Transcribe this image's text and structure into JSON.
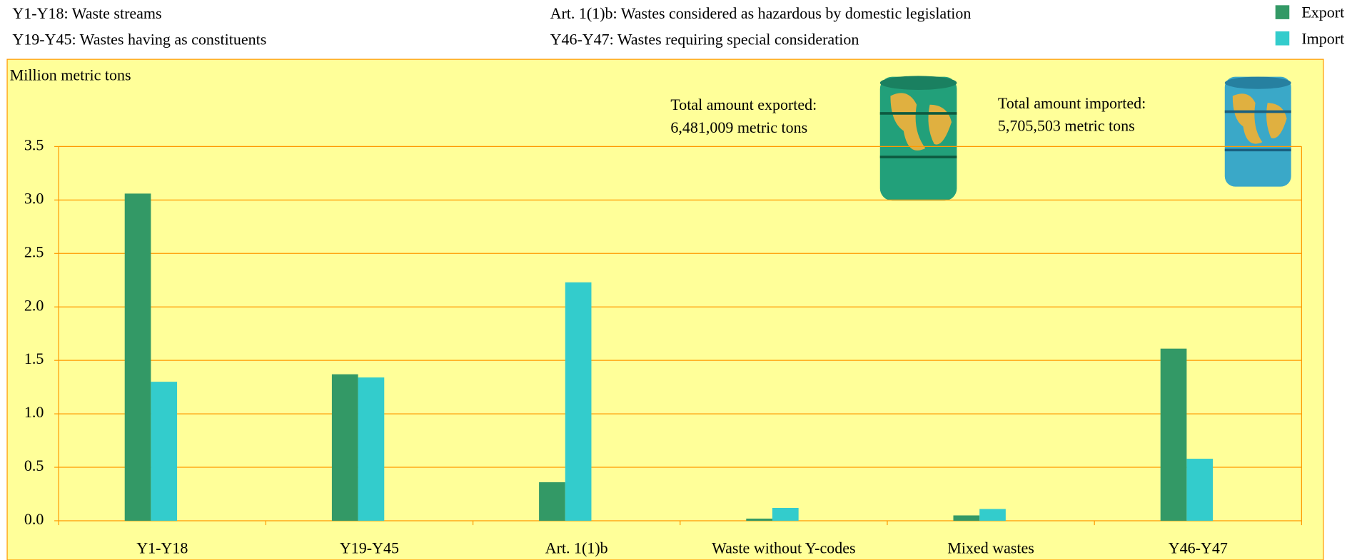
{
  "chart_data": {
    "type": "bar",
    "notes": [
      "Y1-Y18: Waste streams",
      "Y19-Y45: Wastes having as constituents",
      "Art. 1(1)b: Wastes considered as hazardous by domestic legislation",
      "Y46-Y47: Wastes requiring special consideration"
    ],
    "y_label": "Million metric tons",
    "annotations": [
      "Total amount exported:",
      "6,481,009 metric tons",
      "Total amount imported:",
      "5,705,503 metric tons"
    ],
    "categories": [
      "Y1-Y18",
      "Y19-Y45",
      "Art. 1(1)b",
      "Waste without Y-codes",
      "Mixed wastes",
      "Y46-Y47"
    ],
    "series": [
      {
        "name": "Export",
        "color": "#339966",
        "values": [
          3.06,
          1.37,
          0.36,
          0.02,
          0.05,
          1.61
        ]
      },
      {
        "name": "Import",
        "color": "#33cccc",
        "values": [
          1.3,
          1.34,
          2.23,
          0.12,
          0.11,
          0.58
        ]
      }
    ],
    "ylim": [
      0,
      3.5
    ],
    "yticks": [
      {
        "value": 0,
        "label": "0.0"
      },
      0.5,
      {
        "value": 1,
        "label": "1.0"
      },
      1.5,
      {
        "value": 2,
        "label": "2.0"
      },
      2.5,
      {
        "value": 3,
        "label": "3.0"
      },
      3.5
    ],
    "grid": true
  }
}
